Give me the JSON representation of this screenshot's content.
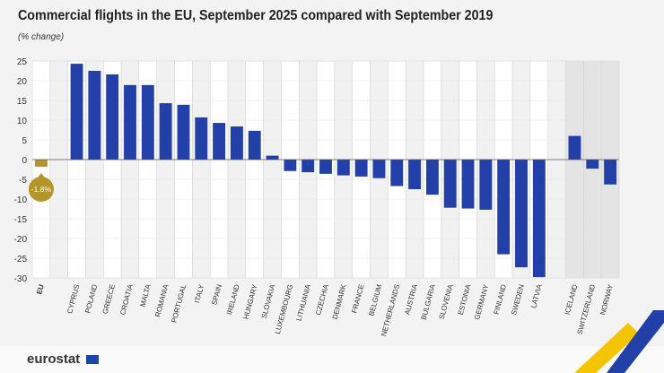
{
  "chart_data": {
    "type": "bar",
    "title": "Commercial flights in the EU, September 2025 compared with September 2019",
    "subtitle": "(% change)",
    "ylim": [
      -30,
      25
    ],
    "yticks": [
      25,
      20,
      15,
      10,
      5,
      0,
      -5,
      -10,
      -15,
      -20,
      -25,
      -30
    ],
    "categories": [
      "EU",
      "",
      "CYPRUS",
      "POLAND",
      "GREECE",
      "CROATIA",
      "MALTA",
      "ROMANIA",
      "PORTUGAL",
      "ITALY",
      "SPAIN",
      "IRELAND",
      "HUNGARY",
      "SLOVAKIA",
      "LUXEMBOURG",
      "LITHUANIA",
      "CZECHIA",
      "DENMARK",
      "FRANCE",
      "BELGIUM",
      "NETHERLANDS",
      "AUSTRIA",
      "BULGARIA",
      "SLOVENIA",
      "ESTONIA",
      "GERMANY",
      "FINLAND",
      "SWEDEN",
      "LATVIA",
      "",
      "ICELAND",
      "SWITZERLAND",
      "NORWAY"
    ],
    "values": [
      -1.8,
      null,
      24.3,
      22.5,
      21.6,
      18.9,
      18.9,
      14.3,
      13.9,
      10.7,
      9.3,
      8.4,
      7.3,
      1.0,
      -2.9,
      -3.2,
      -3.6,
      -4.0,
      -4.3,
      -4.7,
      -6.7,
      -7.5,
      -8.9,
      -12.2,
      -12.4,
      -12.7,
      -24.0,
      -27.3,
      -29.8,
      null,
      6.0,
      -2.3,
      -6.3
    ],
    "annotation": "-1.8%",
    "grid": true,
    "colors": {
      "eu": "#b5942a",
      "country": "#2240a8",
      "non_eu_background": "#e4e4e4"
    }
  },
  "footer": {
    "logo": "eurostat"
  }
}
